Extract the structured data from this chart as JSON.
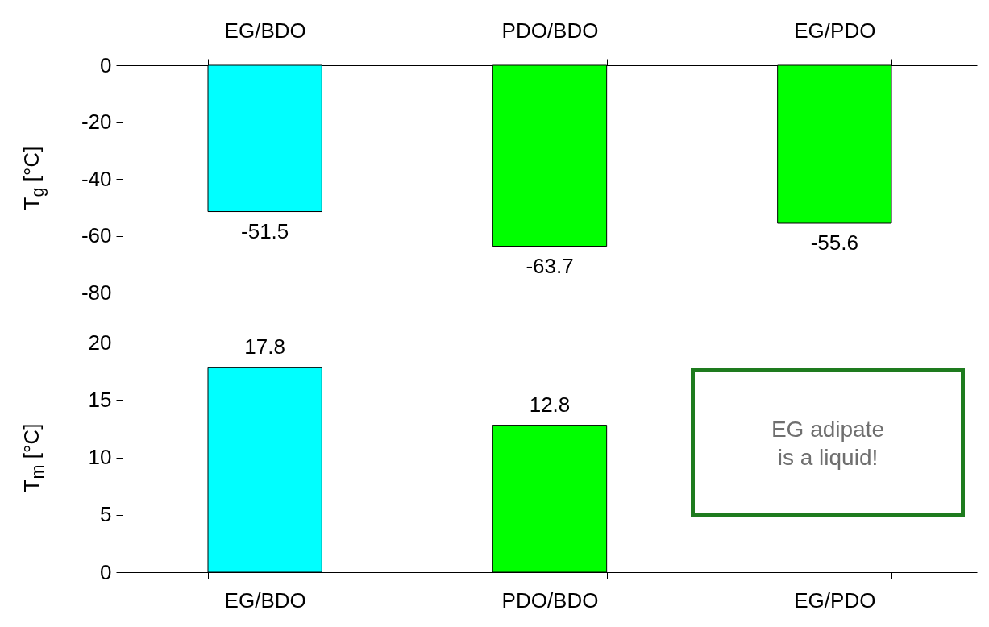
{
  "chart_data": [
    {
      "type": "bar",
      "categories": [
        "EG/BDO",
        "PDO/BDO",
        "EG/PDO"
      ],
      "values": [
        -51.5,
        -63.7,
        -55.6
      ],
      "colors": [
        "#00ffff",
        "#00ff00",
        "#00ff00"
      ],
      "ylabel": "T$_{g}$ [°C]",
      "ylim": [
        -80,
        0
      ],
      "yticks": [
        -80,
        -60,
        -40,
        -20,
        0
      ],
      "data_labels": true
    },
    {
      "type": "bar",
      "categories": [
        "EG/BDO",
        "PDO/BDO",
        "EG/PDO"
      ],
      "values": [
        17.8,
        12.8,
        null
      ],
      "colors": [
        "#00ffff",
        "#00ff00",
        "#00ff00"
      ],
      "ylabel": "T$_{m}$ [°C]",
      "ylim": [
        0,
        20
      ],
      "yticks": [
        0,
        5,
        10,
        15,
        20
      ],
      "data_labels": true,
      "annotations": [
        "EG adipate\nis a liquid!"
      ]
    }
  ]
}
